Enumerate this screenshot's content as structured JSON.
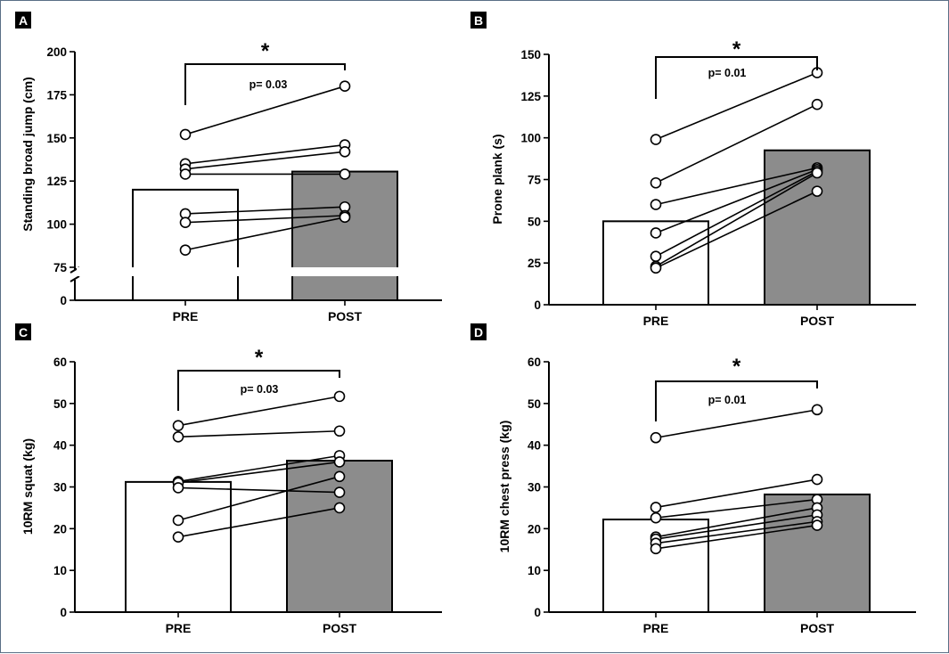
{
  "chart_data": [
    {
      "panel": "A",
      "type": "bar",
      "categories": [
        "PRE",
        "POST"
      ],
      "bar_values": [
        120,
        130.5
      ],
      "bar_colors": [
        "#ffffff",
        "#8c8c8c"
      ],
      "ylabel": "Standing broad jump (cm)",
      "ylim": [
        75,
        200
      ],
      "axis_break": true,
      "break_zero_label": "0",
      "yticks": [
        75,
        100,
        125,
        150,
        175,
        200
      ],
      "individuals": [
        [
          152,
          180
        ],
        [
          135,
          146
        ],
        [
          132,
          142
        ],
        [
          129,
          129
        ],
        [
          106,
          110
        ],
        [
          101,
          105
        ],
        [
          85,
          104
        ]
      ],
      "p_value": "p= 0.03",
      "significance": "*"
    },
    {
      "panel": "B",
      "type": "bar",
      "categories": [
        "PRE",
        "POST"
      ],
      "bar_values": [
        50,
        92.5
      ],
      "bar_colors": [
        "#ffffff",
        "#8c8c8c"
      ],
      "ylabel": "Prone plank  (s)",
      "ylim": [
        0,
        150
      ],
      "yticks": [
        0,
        25,
        50,
        75,
        100,
        125,
        150
      ],
      "individuals": [
        [
          99,
          139
        ],
        [
          73,
          120
        ],
        [
          60,
          82
        ],
        [
          43,
          81
        ],
        [
          29,
          80
        ],
        [
          23,
          79
        ],
        [
          22,
          68
        ]
      ],
      "p_value": "p= 0.01",
      "significance": "*"
    },
    {
      "panel": "C",
      "type": "bar",
      "categories": [
        "PRE",
        "POST"
      ],
      "bar_values": [
        31.2,
        36.3
      ],
      "bar_colors": [
        "#ffffff",
        "#8c8c8c"
      ],
      "ylabel": "10RM squat  (kg)",
      "ylim": [
        0,
        60
      ],
      "yticks": [
        0,
        10,
        20,
        30,
        40,
        50,
        60
      ],
      "individuals": [
        [
          44.7,
          51.7
        ],
        [
          42,
          43.4
        ],
        [
          31.3,
          37.5
        ],
        [
          31,
          36
        ],
        [
          29.8,
          28.7
        ],
        [
          22,
          32.5
        ],
        [
          18,
          25
        ]
      ],
      "p_value": "p= 0.03",
      "significance": "*"
    },
    {
      "panel": "D",
      "type": "bar",
      "categories": [
        "PRE",
        "POST"
      ],
      "bar_values": [
        22.2,
        28.2
      ],
      "bar_colors": [
        "#ffffff",
        "#8c8c8c"
      ],
      "ylabel": "10RM chest press (kg)",
      "ylim": [
        0,
        60
      ],
      "yticks": [
        0,
        10,
        20,
        30,
        40,
        50,
        60
      ],
      "individuals": [
        [
          41.8,
          48.5
        ],
        [
          25.1,
          31.8
        ],
        [
          22.6,
          27
        ],
        [
          18,
          25
        ],
        [
          17.5,
          23.3
        ],
        [
          16.5,
          21.7
        ],
        [
          15.2,
          20.8
        ]
      ],
      "p_value": "p= 0.01",
      "significance": "*"
    }
  ]
}
